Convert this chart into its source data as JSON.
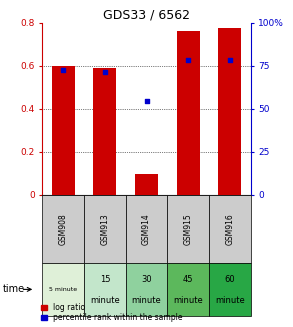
{
  "title": "GDS33 / 6562",
  "samples": [
    "GSM908",
    "GSM913",
    "GSM914",
    "GSM915",
    "GSM916"
  ],
  "time_labels_top": [
    "5 minute",
    "15",
    "30",
    "45",
    "60"
  ],
  "time_labels_bot": [
    "",
    "minute",
    "minute",
    "minute",
    "minute"
  ],
  "time_bg_colors": [
    "#dff0d8",
    "#c3e6cb",
    "#8fd19e",
    "#5cb85c",
    "#28a745"
  ],
  "log_ratio": [
    0.597,
    0.588,
    0.095,
    0.762,
    0.778
  ],
  "percentile_rank": [
    72.5,
    71.5,
    54.5,
    78.5,
    78.5
  ],
  "bar_color": "#cc0000",
  "dot_color": "#0000cc",
  "ylim_left": [
    0,
    0.8
  ],
  "ylim_right": [
    0,
    100
  ],
  "yticks_left": [
    0,
    0.2,
    0.4,
    0.6,
    0.8
  ],
  "yticks_right": [
    0,
    25,
    50,
    75,
    100
  ],
  "ytick_labels_left": [
    "0",
    "0.2",
    "0.4",
    "0.6",
    "0.8"
  ],
  "ytick_labels_right": [
    "0",
    "25",
    "50",
    "75",
    "100%"
  ],
  "left_axis_color": "#cc0000",
  "right_axis_color": "#0000cc",
  "legend_log_ratio": "log ratio",
  "legend_percentile": "percentile rank within the sample",
  "time_label": "time",
  "sample_bg_color": "#cccccc"
}
